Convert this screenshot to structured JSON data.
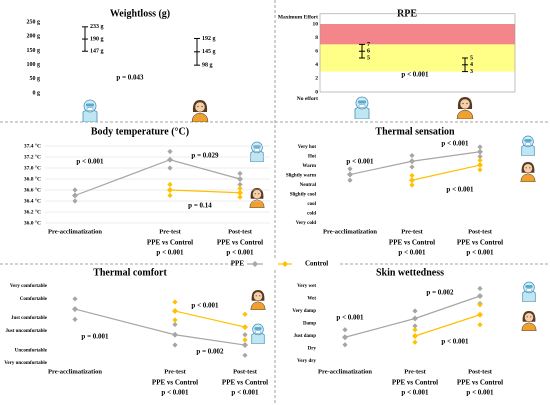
{
  "legend": [
    {
      "name": "PPE",
      "color": "#a6a6a6"
    },
    {
      "name": "Control",
      "color": "#ffc000"
    }
  ],
  "chart_data": [
    {
      "type": "range",
      "title": "Weightloss (g)",
      "ylim": [
        0,
        250
      ],
      "yticks": [
        {
          "value": 0,
          "label": "0 g"
        },
        {
          "value": 50,
          "label": "50 g"
        },
        {
          "value": 100,
          "label": "100 g"
        },
        {
          "value": 150,
          "label": "150 g"
        },
        {
          "value": 200,
          "label": "200 g"
        },
        {
          "value": 250,
          "label": "250 g"
        }
      ],
      "series": [
        {
          "values": [
            190,
            145
          ],
          "upper": [
            233,
            192
          ],
          "lower": [
            147,
            98
          ],
          "value_labels": [
            "190 g",
            "145 g"
          ],
          "upper_labels": [
            "233 g",
            "192 g"
          ],
          "lower_labels": [
            "147 g",
            "98 g"
          ]
        }
      ],
      "annotations": [
        "p = 0.043"
      ]
    },
    {
      "type": "range",
      "title": "RPE",
      "ylim": [
        -1.5,
        11.5
      ],
      "yticks": [
        {
          "value": -1,
          "label": "No effort"
        },
        0,
        2,
        4,
        6,
        8,
        10,
        {
          "value": 11,
          "label": "Maximum Effort"
        }
      ],
      "bands": [
        {
          "from": 7,
          "to": 10,
          "color": "#f4868b"
        },
        {
          "from": 3,
          "to": 7,
          "color": "#ffff88"
        }
      ],
      "series": [
        {
          "values": [
            6,
            4
          ],
          "upper": [
            7,
            5
          ],
          "lower": [
            5,
            3
          ]
        }
      ],
      "annotations": [
        "p < 0.001"
      ]
    },
    {
      "type": "line",
      "title": "Body temperature (°C)",
      "ylim": [
        36.0,
        37.4
      ],
      "grid": true,
      "yticks": [
        {
          "value": 36.0,
          "label": "36.0 °C"
        },
        {
          "value": 36.2,
          "label": "36.2 °C"
        },
        {
          "value": 36.4,
          "label": "36.4 °C"
        },
        {
          "value": 36.6,
          "label": "36.6 °C"
        },
        {
          "value": 36.8,
          "label": "36.8 °C"
        },
        {
          "value": 37.0,
          "label": "37.0 °C"
        },
        {
          "value": 37.2,
          "label": "37.2 °C"
        },
        {
          "value": 37.4,
          "label": "37.4 °C"
        }
      ],
      "categories": [
        "Pre-acclimatization",
        "Pre-test",
        "Post-test"
      ],
      "series": [
        {
          "values": [
            36.5,
            37.15,
            36.8
          ],
          "errors": [
            0.1,
            0.15,
            0.1
          ]
        },
        {
          "values": [
            null,
            36.6,
            36.55
          ],
          "errors": [
            null,
            0.1,
            0.08
          ]
        }
      ],
      "annotations": [
        "p < 0.001",
        "p = 0.029",
        "p = 0.14"
      ],
      "comparison": {
        "label": "PPE vs Control",
        "p": [
          null,
          "p < 0.001",
          "p < 0.001"
        ]
      }
    },
    {
      "type": "line",
      "title": "Thermal sensation",
      "ylim": [
        -4,
        4
      ],
      "yticks": [
        {
          "value": 4,
          "label": "Very hot"
        },
        {
          "value": 3,
          "label": "Hot"
        },
        {
          "value": 2,
          "label": "Warm"
        },
        {
          "value": 1,
          "label": "Slightly warm"
        },
        {
          "value": 0,
          "label": "Neutral"
        },
        {
          "value": -1,
          "label": "Slightly cool"
        },
        {
          "value": -2,
          "label": "cool"
        },
        {
          "value": -3,
          "label": "cold"
        },
        {
          "value": -4,
          "label": "Very cold"
        }
      ],
      "categories": [
        "Pre-acclimatization",
        "Pre-test",
        "Post-test"
      ],
      "series": [
        {
          "values": [
            1.1,
            2.5,
            3.5
          ],
          "errors": [
            0.6,
            0.6,
            0.5
          ]
        },
        {
          "values": [
            null,
            0.5,
            2.1
          ],
          "errors": [
            null,
            0.5,
            0.5
          ]
        }
      ],
      "annotations": [
        "p < 0.001",
        "p < 0.001",
        "p < 0.001"
      ],
      "comparison": {
        "label": "PPE vs Control",
        "p": [
          null,
          "p < 0.001",
          "p < 0.001"
        ]
      }
    },
    {
      "type": "line",
      "title": "Thermal comfort",
      "ylim": [
        -3,
        3
      ],
      "yticks": [
        {
          "value": 3,
          "label": "Very comfortable"
        },
        {
          "value": 2,
          "label": "Comfortable"
        },
        {
          "value": 0.5,
          "label": "Just comfortable"
        },
        {
          "value": -0.5,
          "label": "Just uncomfortable"
        },
        {
          "value": -2,
          "label": "Uncomfortable"
        },
        {
          "value": -3,
          "label": "Very uncomfortable"
        }
      ],
      "categories": [
        "Pre-acclimatization",
        "Pre-test",
        "Post-test"
      ],
      "series": [
        {
          "values": [
            1.2,
            -0.8,
            -1.6
          ],
          "errors": [
            0.8,
            0.8,
            0.8
          ]
        },
        {
          "values": [
            null,
            1.05,
            -0.2
          ],
          "errors": [
            null,
            0.7,
            1
          ]
        }
      ],
      "annotations": [
        "p = 0.001",
        "p < 0.001",
        "p = 0.002"
      ],
      "comparison": {
        "label": "PPE vs Control",
        "p": [
          null,
          "p < 0.001",
          "p < 0.001"
        ]
      }
    },
    {
      "type": "line",
      "title": "Skin wettedness",
      "ylim": [
        -3,
        3
      ],
      "yticks": [
        {
          "value": 3,
          "label": "Very wet"
        },
        {
          "value": 2,
          "label": "Wet"
        },
        {
          "value": 1,
          "label": "Very damp"
        },
        {
          "value": 0,
          "label": "Damp"
        },
        {
          "value": -1,
          "label": "Just damp"
        },
        {
          "value": -2,
          "label": "Dry"
        },
        {
          "value": -3,
          "label": "Very dry"
        }
      ],
      "categories": [
        "Pre-acclimatization",
        "Pre-test",
        "Post-test"
      ],
      "series": [
        {
          "values": [
            -1.1,
            0.4,
            2.2
          ],
          "errors": [
            0.6,
            0.6,
            0.6
          ]
        },
        {
          "values": [
            null,
            -1.0,
            0.7
          ],
          "errors": [
            null,
            0.5,
            0.8
          ]
        }
      ],
      "annotations": [
        "p < 0.001",
        "p = 0.002",
        "p < 0.001"
      ],
      "comparison": {
        "label": "PPE vs Control",
        "p": [
          null,
          "p < 0.001",
          "p < 0.001"
        ]
      }
    }
  ]
}
